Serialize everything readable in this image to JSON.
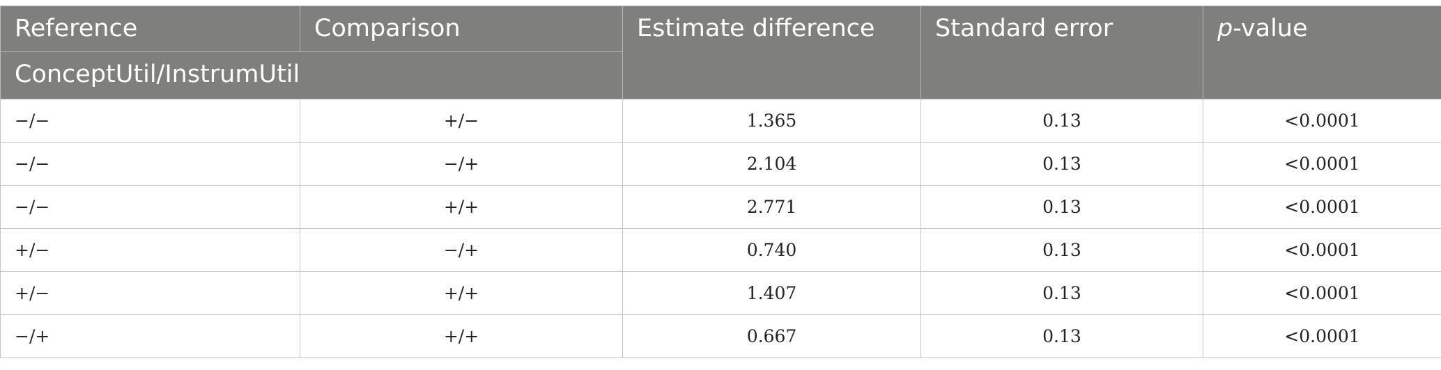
{
  "table": {
    "header": {
      "reference": "Reference",
      "comparison": "Comparison",
      "group_label": "ConceptUtil/InstrumUtil",
      "estimate_difference": "Estimate difference",
      "standard_error": "Standard error",
      "p_value_prefix": "p",
      "p_value_suffix": "-value"
    },
    "rows": [
      {
        "reference": "−/−",
        "comparison": "+/−",
        "estimate": "1.365",
        "se": "0.13",
        "p": "<0.0001"
      },
      {
        "reference": "−/−",
        "comparison": "−/+",
        "estimate": "2.104",
        "se": "0.13",
        "p": "<0.0001"
      },
      {
        "reference": "−/−",
        "comparison": "+/+",
        "estimate": "2.771",
        "se": "0.13",
        "p": "<0.0001"
      },
      {
        "reference": "+/−",
        "comparison": "−/+",
        "estimate": "0.740",
        "se": "0.13",
        "p": "<0.0001"
      },
      {
        "reference": "+/−",
        "comparison": "+/+",
        "estimate": "1.407",
        "se": "0.13",
        "p": "<0.0001"
      },
      {
        "reference": "−/+",
        "comparison": "+/+",
        "estimate": "0.667",
        "se": "0.13",
        "p": "<0.0001"
      }
    ]
  }
}
